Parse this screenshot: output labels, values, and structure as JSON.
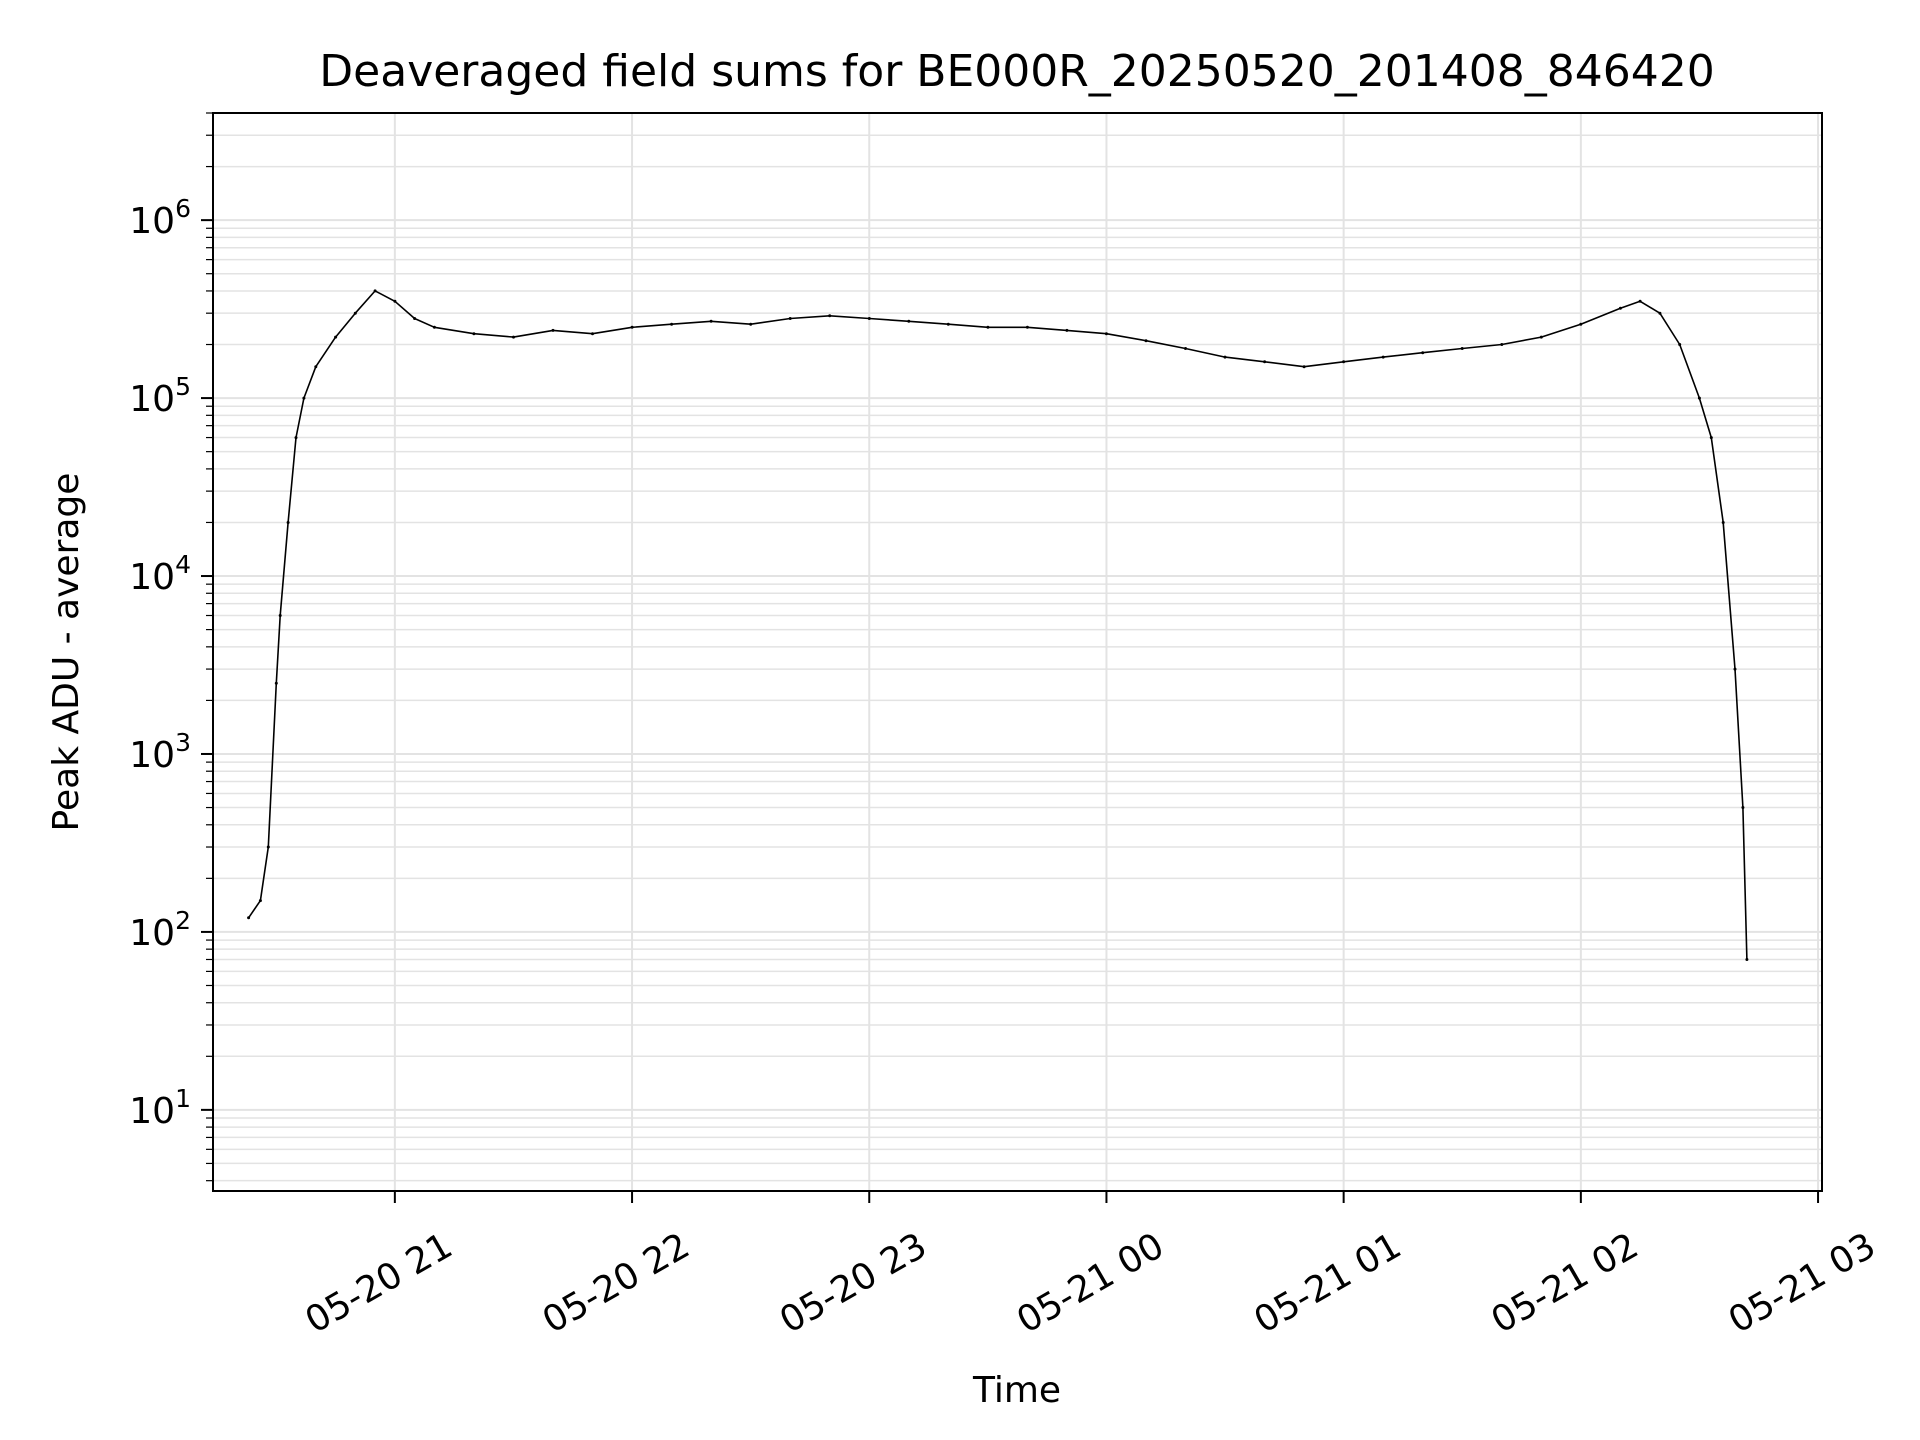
{
  "chart_data": {
    "type": "line",
    "title": "Deaveraged field sums for BE000R_20250520_201408_846420",
    "xlabel": "Time",
    "ylabel": "Peak ADU - average",
    "yscale": "log",
    "grid": true,
    "xlim": [
      "05-20 20:14",
      "05-21 03:01"
    ],
    "ylim": [
      3.5,
      4000000
    ],
    "x_ticks": [
      "05-20 21",
      "05-20 22",
      "05-20 23",
      "05-21 00",
      "05-21 01",
      "05-21 02",
      "05-21 03"
    ],
    "y_ticks": [
      {
        "value": 10,
        "base": "10",
        "exp": "1"
      },
      {
        "value": 100,
        "base": "10",
        "exp": "2"
      },
      {
        "value": 1000,
        "base": "10",
        "exp": "3"
      },
      {
        "value": 10000,
        "base": "10",
        "exp": "4"
      },
      {
        "value": 100000,
        "base": "10",
        "exp": "5"
      },
      {
        "value": 1000000,
        "base": "10",
        "exp": "6"
      }
    ],
    "line_color": "#000000",
    "grid_color": "#e3e3e3",
    "series": [
      {
        "values": [
          [
            "05-20 20:23",
            120
          ],
          [
            "05-20 20:26",
            150
          ],
          [
            "05-20 20:28",
            300
          ],
          [
            "05-20 20:30",
            2500
          ],
          [
            "05-20 20:31",
            6000
          ],
          [
            "05-20 20:33",
            20000
          ],
          [
            "05-20 20:35",
            60000
          ],
          [
            "05-20 20:37",
            100000
          ],
          [
            "05-20 20:40",
            150000
          ],
          [
            "05-20 20:45",
            220000
          ],
          [
            "05-20 20:50",
            300000
          ],
          [
            "05-20 20:55",
            400000
          ],
          [
            "05-20 21:00",
            350000
          ],
          [
            "05-20 21:05",
            280000
          ],
          [
            "05-20 21:10",
            250000
          ],
          [
            "05-20 21:20",
            230000
          ],
          [
            "05-20 21:30",
            220000
          ],
          [
            "05-20 21:40",
            240000
          ],
          [
            "05-20 21:50",
            230000
          ],
          [
            "05-20 22:00",
            250000
          ],
          [
            "05-20 22:10",
            260000
          ],
          [
            "05-20 22:20",
            270000
          ],
          [
            "05-20 22:30",
            260000
          ],
          [
            "05-20 22:40",
            280000
          ],
          [
            "05-20 22:50",
            290000
          ],
          [
            "05-20 23:00",
            280000
          ],
          [
            "05-20 23:10",
            270000
          ],
          [
            "05-20 23:20",
            260000
          ],
          [
            "05-20 23:30",
            250000
          ],
          [
            "05-20 23:40",
            250000
          ],
          [
            "05-20 23:50",
            240000
          ],
          [
            "05-21 00:00",
            230000
          ],
          [
            "05-21 00:10",
            210000
          ],
          [
            "05-21 00:20",
            190000
          ],
          [
            "05-21 00:30",
            170000
          ],
          [
            "05-21 00:40",
            160000
          ],
          [
            "05-21 00:50",
            150000
          ],
          [
            "05-21 01:00",
            160000
          ],
          [
            "05-21 01:10",
            170000
          ],
          [
            "05-21 01:20",
            180000
          ],
          [
            "05-21 01:30",
            190000
          ],
          [
            "05-21 01:40",
            200000
          ],
          [
            "05-21 01:50",
            220000
          ],
          [
            "05-21 02:00",
            260000
          ],
          [
            "05-21 02:10",
            320000
          ],
          [
            "05-21 02:15",
            350000
          ],
          [
            "05-21 02:20",
            300000
          ],
          [
            "05-21 02:25",
            200000
          ],
          [
            "05-21 02:30",
            100000
          ],
          [
            "05-21 02:33",
            60000
          ],
          [
            "05-21 02:36",
            20000
          ],
          [
            "05-21 02:39",
            3000
          ],
          [
            "05-21 02:41",
            500
          ],
          [
            "05-21 02:42",
            70
          ]
        ]
      }
    ]
  }
}
